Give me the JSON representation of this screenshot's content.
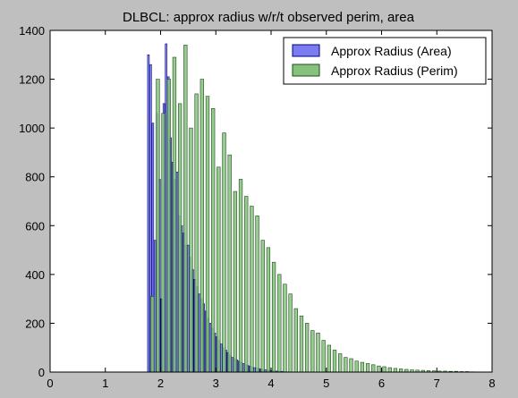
{
  "chart_data": {
    "type": "bar",
    "title": "DLBCL: approx radius w/r/t observed perim, area",
    "xlabel": "",
    "ylabel": "",
    "xlim": [
      0,
      8
    ],
    "ylim": [
      0,
      1400
    ],
    "x_ticks": [
      "0",
      "1",
      "2",
      "3",
      "4",
      "5",
      "6",
      "7",
      "8"
    ],
    "y_ticks": [
      "0",
      "200",
      "400",
      "600",
      "800",
      "1000",
      "1200",
      "1400"
    ],
    "grid": false,
    "legend_placement": "top-right",
    "colors": {
      "area_fill": "#7b7bf2",
      "area_edge": "#000080",
      "perim_fill": "#86c27c",
      "perim_edge": "#1e4d1e",
      "figure_bg": "#bfbfbf",
      "axes_bg": "#ffffff"
    },
    "series": [
      {
        "name": "Approx Radius (Area)",
        "x": [
          1.78,
          1.82,
          1.86,
          1.9,
          1.94,
          1.98,
          2.02,
          2.06,
          2.1,
          2.14,
          2.18,
          2.22,
          2.26,
          2.3,
          2.34,
          2.38,
          2.42,
          2.46,
          2.5,
          2.54,
          2.58,
          2.62,
          2.66,
          2.7,
          2.74,
          2.78,
          2.82,
          2.86,
          2.9,
          2.94,
          2.98,
          3.02,
          3.06,
          3.1,
          3.14,
          3.18,
          3.22,
          3.26,
          3.3,
          3.34,
          3.38,
          3.42,
          3.46,
          3.5,
          3.54,
          3.58,
          3.62,
          3.66,
          3.7,
          3.74,
          3.78,
          3.82,
          3.86,
          3.9,
          3.94,
          3.98,
          4.02,
          4.06,
          4.1,
          4.14,
          4.18,
          4.22,
          4.26,
          4.3
        ],
        "values": [
          1300,
          1260,
          1020,
          540,
          1060,
          790,
          300,
          1100,
          1345,
          1210,
          960,
          860,
          790,
          820,
          640,
          600,
          570,
          520,
          520,
          470,
          420,
          380,
          350,
          320,
          300,
          280,
          250,
          220,
          200,
          180,
          160,
          145,
          130,
          115,
          100,
          90,
          80,
          70,
          60,
          55,
          50,
          45,
          40,
          35,
          30,
          27,
          24,
          21,
          18,
          16,
          14,
          12,
          10,
          9,
          8,
          7,
          6,
          5,
          4,
          3,
          3,
          2,
          2,
          1
        ]
      },
      {
        "name": "Approx Radius (Perim)",
        "x": [
          1.85,
          1.95,
          2.05,
          2.15,
          2.25,
          2.35,
          2.45,
          2.55,
          2.65,
          2.75,
          2.85,
          2.95,
          3.05,
          3.15,
          3.25,
          3.35,
          3.45,
          3.55,
          3.65,
          3.75,
          3.85,
          3.95,
          4.05,
          4.15,
          4.25,
          4.35,
          4.45,
          4.55,
          4.65,
          4.75,
          4.85,
          4.95,
          5.05,
          5.15,
          5.25,
          5.35,
          5.45,
          5.55,
          5.65,
          5.75,
          5.85,
          5.95,
          6.05,
          6.15,
          6.25,
          6.35,
          6.45,
          6.55,
          6.65,
          6.75,
          6.85,
          6.95,
          7.05,
          7.15,
          7.25,
          7.35,
          7.45,
          7.55,
          7.65
        ],
        "values": [
          310,
          1200,
          1060,
          1200,
          1290,
          1100,
          1340,
          1000,
          1140,
          1200,
          1130,
          1080,
          840,
          980,
          890,
          740,
          790,
          720,
          680,
          640,
          540,
          510,
          450,
          400,
          360,
          320,
          260,
          230,
          200,
          170,
          160,
          130,
          110,
          90,
          75,
          60,
          55,
          45,
          40,
          35,
          30,
          25,
          22,
          18,
          15,
          13,
          11,
          9,
          8,
          7,
          6,
          5,
          4,
          4,
          3,
          3,
          2,
          2,
          1
        ]
      }
    ]
  }
}
